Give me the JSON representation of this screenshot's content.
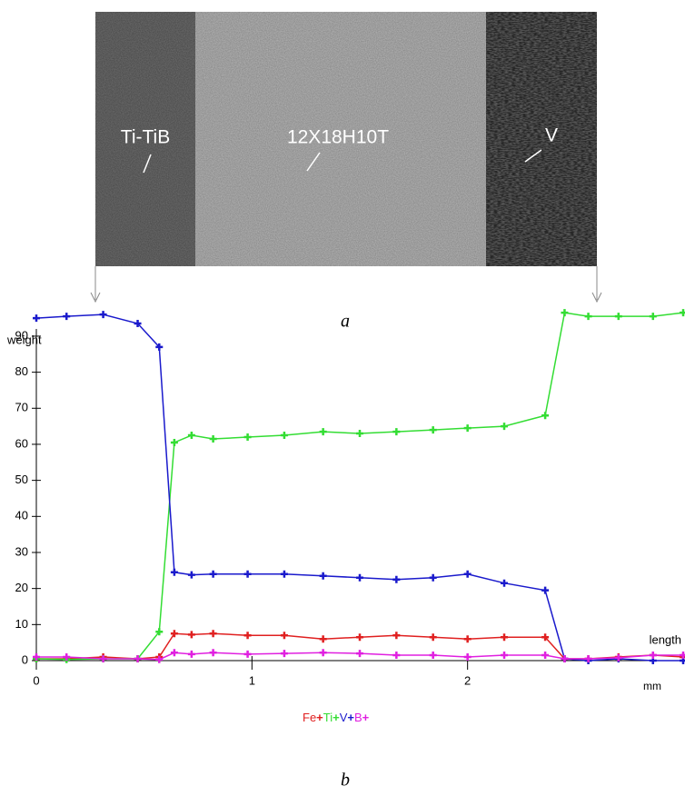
{
  "image": {
    "labels": [
      "Ti-TiB",
      "12X18H10T",
      "V"
    ],
    "caption": "a"
  },
  "chart_data": {
    "type": "line",
    "caption": "b",
    "y_label": "weight",
    "x_label": "length",
    "x_unit": "mm",
    "xlim": [
      0,
      3
    ],
    "ylim": [
      0,
      92
    ],
    "xticks": [
      0,
      1,
      2
    ],
    "yticks": [
      0,
      10,
      20,
      30,
      40,
      50,
      60,
      70,
      80,
      90
    ],
    "x": [
      0,
      0.14,
      0.31,
      0.47,
      0.57,
      0.64,
      0.72,
      0.82,
      0.98,
      1.15,
      1.33,
      1.5,
      1.67,
      1.84,
      2.0,
      2.17,
      2.36,
      2.45,
      2.56,
      2.7,
      2.86,
      3.0
    ],
    "series": [
      {
        "name": "Fe",
        "color": "#e02020",
        "values": [
          0.5,
          0.5,
          1,
          0.5,
          1,
          7.5,
          7.2,
          7.5,
          7,
          7,
          6,
          6.5,
          7,
          6.5,
          6,
          6.5,
          6.5,
          0.5,
          0.5,
          1,
          1.5,
          1
        ]
      },
      {
        "name": "Ti",
        "color": "#33dd33",
        "values": [
          0.5,
          0.3,
          0.5,
          0.5,
          8,
          60.5,
          62.5,
          61.5,
          62,
          62.5,
          63.5,
          63,
          63.5,
          64,
          64.5,
          65,
          68,
          96.5,
          95.5,
          95.5,
          95.5,
          96.5
        ]
      },
      {
        "name": "V",
        "color": "#1a1acc",
        "values": [
          95,
          95.5,
          96,
          93.5,
          87,
          24.5,
          23.8,
          24,
          24,
          24,
          23.5,
          23,
          22.5,
          23,
          24,
          21.5,
          19.5,
          0.5,
          0,
          0.5,
          0,
          0
        ]
      },
      {
        "name": "B",
        "color": "#e020e0",
        "values": [
          1,
          1,
          0.5,
          0.5,
          0.3,
          2.2,
          1.8,
          2.2,
          1.8,
          2,
          2.2,
          2,
          1.5,
          1.5,
          1,
          1.5,
          1.5,
          0.5,
          0.5,
          0.8,
          1.5,
          1.5
        ]
      }
    ]
  }
}
